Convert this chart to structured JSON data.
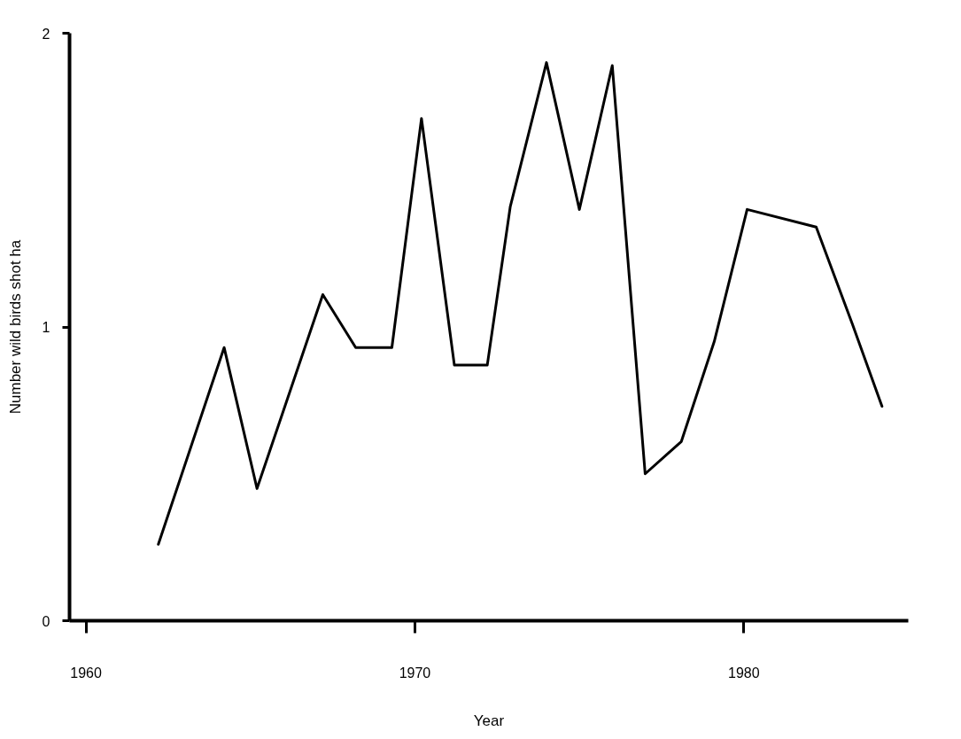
{
  "chart_data": {
    "type": "line",
    "xlabel": "Year",
    "ylabel": "Number wild birds shot ha",
    "x": [
      1962.2,
      1964.2,
      1965.2,
      1967.2,
      1968.2,
      1969.3,
      1970.2,
      1971.2,
      1972.2,
      1972.9,
      1974.0,
      1975.0,
      1976.0,
      1977.0,
      1978.1,
      1979.1,
      1980.1,
      1982.2,
      1983.3,
      1984.2
    ],
    "series": [
      {
        "color": "#000000",
        "values": [
          0.26,
          0.93,
          0.45,
          1.11,
          0.93,
          0.93,
          1.71,
          0.87,
          0.87,
          1.41,
          1.9,
          1.4,
          1.89,
          0.5,
          0.61,
          0.95,
          1.4,
          1.34,
          1.01,
          0.73
        ]
      }
    ],
    "xlim": [
      1959.5,
      1985
    ],
    "ylim": [
      0,
      2
    ],
    "xticks": [
      1960,
      1970,
      1980
    ],
    "yticks": [
      0,
      1,
      2
    ],
    "line_style": "solid"
  }
}
